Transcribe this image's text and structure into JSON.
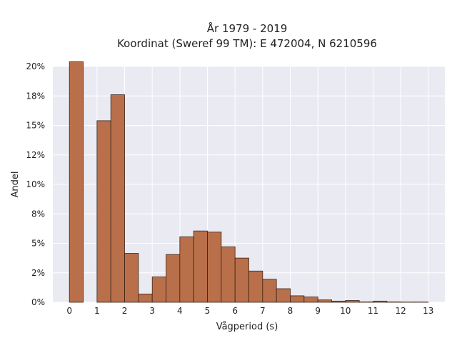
{
  "chart_data": {
    "type": "bar",
    "title": "År 1979 - 2019",
    "subtitle": "Koordinat (Sweref 99 TM): E 472004, N 6210596",
    "xlabel": "Vågperiod (s)",
    "ylabel": "Andel",
    "bin_width": 0.5,
    "xlim": [
      -0.6,
      13.6
    ],
    "ylim": [
      0,
      0.2
    ],
    "xticks": [
      0,
      1,
      2,
      3,
      4,
      5,
      6,
      7,
      8,
      9,
      10,
      11,
      12,
      13
    ],
    "xtick_labels": [
      "0",
      "1",
      "2",
      "3",
      "4",
      "5",
      "6",
      "7",
      "8",
      "9",
      "10",
      "11",
      "12",
      "13"
    ],
    "yticks": [
      0,
      0.025,
      0.05,
      0.075,
      0.1,
      0.125,
      0.15,
      0.175,
      0.2
    ],
    "ytick_labels": [
      "0%",
      "2%",
      "5%",
      "8%",
      "10%",
      "12%",
      "15%",
      "18%",
      "20%"
    ],
    "bins": [
      {
        "x": 0.0,
        "value": 0.204
      },
      {
        "x": 0.5,
        "value": 0.0
      },
      {
        "x": 1.0,
        "value": 0.154
      },
      {
        "x": 1.5,
        "value": 0.176
      },
      {
        "x": 2.0,
        "value": 0.0415
      },
      {
        "x": 2.5,
        "value": 0.007
      },
      {
        "x": 3.0,
        "value": 0.0215
      },
      {
        "x": 3.5,
        "value": 0.0405
      },
      {
        "x": 4.0,
        "value": 0.0555
      },
      {
        "x": 4.5,
        "value": 0.0605
      },
      {
        "x": 5.0,
        "value": 0.0595
      },
      {
        "x": 5.5,
        "value": 0.047
      },
      {
        "x": 6.0,
        "value": 0.0375
      },
      {
        "x": 6.5,
        "value": 0.0265
      },
      {
        "x": 7.0,
        "value": 0.0195
      },
      {
        "x": 7.5,
        "value": 0.0115
      },
      {
        "x": 8.0,
        "value": 0.0055
      },
      {
        "x": 8.5,
        "value": 0.0045
      },
      {
        "x": 9.0,
        "value": 0.002
      },
      {
        "x": 9.5,
        "value": 0.001
      },
      {
        "x": 10.0,
        "value": 0.0015
      },
      {
        "x": 10.5,
        "value": 0.0003
      },
      {
        "x": 11.0,
        "value": 0.001
      },
      {
        "x": 11.5,
        "value": 0.0003
      },
      {
        "x": 12.0,
        "value": 0.0002
      },
      {
        "x": 12.5,
        "value": 0.0002
      }
    ],
    "grid": true,
    "colors": {
      "bar_fill": "#b9704a",
      "bar_edge": "#3a2214",
      "plot_background": "#eaeaf2",
      "grid": "#ffffff",
      "text": "#222222"
    }
  }
}
